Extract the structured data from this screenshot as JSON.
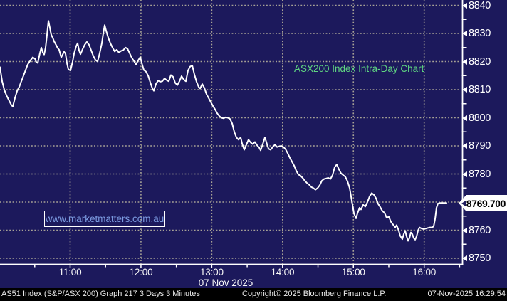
{
  "annotation": {
    "text": "ASX200 Index Intra-Day Chart",
    "color": "#5fd581"
  },
  "watermark": {
    "text": "www.marketmatters.com.au",
    "color": "#7d9ce2"
  },
  "price_tag": {
    "value": "8769.700"
  },
  "y_axis": {
    "labels": [
      "8840",
      "8830",
      "8820",
      "8810",
      "8800",
      "8790",
      "8780",
      "8760",
      "8750"
    ]
  },
  "x_axis": {
    "ticks": [
      "11:00",
      "12:00",
      "13:00",
      "14:00",
      "15:00",
      "16:00"
    ],
    "date_label": "07 Nov 2025"
  },
  "status_bar": {
    "left": "AS51 Index (S&P/ASX 200) Graph 217 3 Days 3 Minutes",
    "center": "Copyright© 2025 Bloomberg Finance L.P.",
    "right": "07-Nov-2025 16:29:54"
  },
  "colors": {
    "background": "#1c195c",
    "gridline": "#a8a396",
    "line": "#ffffff",
    "annotation_green": "#5fd581",
    "watermark_blue": "#7d9ce2",
    "axis_white": "#ffffff",
    "statusbar_bg": "#000000"
  },
  "chart_data": {
    "type": "line",
    "title": "ASX200 Index Intra-Day Chart",
    "series_name": "AS51 Index (S&P/ASX 200)",
    "interval": "3 Minutes",
    "session_date": "07 Nov 2025",
    "last_price": 8769.7,
    "day_high": 8834.5,
    "day_low": 8756.0,
    "ylim": [
      8750,
      8840
    ],
    "y_ticks": [
      8750,
      8760,
      8770,
      8780,
      8790,
      8800,
      8810,
      8820,
      8830,
      8840
    ],
    "y_minor_ticks": [
      8755,
      8765,
      8775,
      8785,
      8795,
      8805,
      8815,
      8825,
      8835
    ],
    "x_tick_labels": [
      "11:00",
      "12:00",
      "13:00",
      "14:00",
      "15:00",
      "16:00"
    ],
    "grid": "dotted",
    "legend_position": "none",
    "points": [
      [
        0,
        8818
      ],
      [
        3,
        8813
      ],
      [
        6,
        8810
      ],
      [
        9,
        8808
      ],
      [
        13,
        8806
      ],
      [
        16,
        8804.5
      ],
      [
        18,
        8804
      ],
      [
        21,
        8807
      ],
      [
        24,
        8809.5
      ],
      [
        27,
        8811
      ],
      [
        30,
        8813
      ],
      [
        33,
        8815
      ],
      [
        36,
        8817
      ],
      [
        39,
        8819
      ],
      [
        43,
        8820.5
      ],
      [
        46,
        8821.5
      ],
      [
        49,
        8821
      ],
      [
        51,
        8819.8
      ],
      [
        53,
        8819.5
      ],
      [
        56,
        8823
      ],
      [
        58,
        8825
      ],
      [
        60,
        8823.2
      ],
      [
        62,
        8822.5
      ],
      [
        64,
        8825
      ],
      [
        66,
        8829.5
      ],
      [
        68,
        8834.5
      ],
      [
        70,
        8832
      ],
      [
        72,
        8829.5
      ],
      [
        74,
        8828.5
      ],
      [
        76,
        8827.2
      ],
      [
        79,
        8825.8
      ],
      [
        81,
        8824.8
      ],
      [
        83,
        8824.2
      ],
      [
        86,
        8821.5
      ],
      [
        88,
        8822.5
      ],
      [
        90,
        8823.5
      ],
      [
        92,
        8822.8
      ],
      [
        94,
        8819.5
      ],
      [
        96,
        8817.2
      ],
      [
        99,
        8816.8
      ],
      [
        102,
        8820
      ],
      [
        104,
        8822.8
      ],
      [
        107,
        8825.5
      ],
      [
        109,
        8826.5
      ],
      [
        111,
        8824
      ],
      [
        113,
        8822.6
      ],
      [
        116,
        8824.4
      ],
      [
        119,
        8826
      ],
      [
        122,
        8827
      ],
      [
        125,
        8826
      ],
      [
        128,
        8824
      ],
      [
        131,
        8822
      ],
      [
        134,
        8820.6
      ],
      [
        137,
        8820
      ],
      [
        140,
        8823
      ],
      [
        143,
        8826.5
      ],
      [
        145,
        8830
      ],
      [
        147,
        8833
      ],
      [
        149,
        8831
      ],
      [
        152,
        8828.5
      ],
      [
        155,
        8826.5
      ],
      [
        158,
        8825
      ],
      [
        161,
        8823.6
      ],
      [
        164,
        8824.2
      ],
      [
        167,
        8823.2
      ],
      [
        170,
        8823.8
      ],
      [
        173,
        8824
      ],
      [
        176,
        8825
      ],
      [
        179,
        8824.6
      ],
      [
        182,
        8823
      ],
      [
        185,
        8821.4
      ],
      [
        188,
        8820.2
      ],
      [
        191,
        8819
      ],
      [
        194,
        8820.4
      ],
      [
        197,
        8821.6
      ],
      [
        199,
        8819.5
      ],
      [
        202,
        8817
      ],
      [
        205,
        8816.4
      ],
      [
        208,
        8815
      ],
      [
        211,
        8812.6
      ],
      [
        214,
        8810.4
      ],
      [
        216,
        8809.6
      ],
      [
        219,
        8812
      ],
      [
        222,
        8813.2
      ],
      [
        225,
        8812.8
      ],
      [
        228,
        8813
      ],
      [
        231,
        8814
      ],
      [
        234,
        8813.4
      ],
      [
        237,
        8813
      ],
      [
        240,
        8815.2
      ],
      [
        243,
        8814.6
      ],
      [
        246,
        8812.4
      ],
      [
        249,
        8811.6
      ],
      [
        252,
        8813
      ],
      [
        255,
        8814.8
      ],
      [
        258,
        8813.6
      ],
      [
        261,
        8813
      ],
      [
        264,
        8816.8
      ],
      [
        267,
        8818.2
      ],
      [
        270,
        8818.6
      ],
      [
        273,
        8815.4
      ],
      [
        276,
        8812.8
      ],
      [
        279,
        8811
      ],
      [
        281,
        8810.4
      ],
      [
        284,
        8812
      ],
      [
        287,
        8810.6
      ],
      [
        290,
        8808.4
      ],
      [
        293,
        8807
      ],
      [
        296,
        8805.6
      ],
      [
        299,
        8804.2
      ],
      [
        302,
        8803
      ],
      [
        305,
        8801.6
      ],
      [
        308,
        8800.6
      ],
      [
        311,
        8800
      ],
      [
        314,
        8799.8
      ],
      [
        317,
        8800.2
      ],
      [
        320,
        8800
      ],
      [
        323,
        8799.6
      ],
      [
        326,
        8798
      ],
      [
        329,
        8795
      ],
      [
        332,
        8793
      ],
      [
        335,
        8792.2
      ],
      [
        338,
        8793
      ],
      [
        340,
        8790.8
      ],
      [
        343,
        8788.6
      ],
      [
        346,
        8790.4
      ],
      [
        349,
        8792.2
      ],
      [
        352,
        8791.2
      ],
      [
        355,
        8790.6
      ],
      [
        358,
        8791.4
      ],
      [
        361,
        8790.2
      ],
      [
        364,
        8789.4
      ],
      [
        366,
        8788.4
      ],
      [
        369,
        8790.6
      ],
      [
        372,
        8793
      ],
      [
        374,
        8791.4
      ],
      [
        377,
        8789
      ],
      [
        380,
        8788.6
      ],
      [
        383,
        8789.6
      ],
      [
        386,
        8790.4
      ],
      [
        389,
        8789.6
      ],
      [
        392,
        8789.8
      ],
      [
        395,
        8790
      ],
      [
        398,
        8789.6
      ],
      [
        401,
        8788.8
      ],
      [
        404,
        8787.4
      ],
      [
        407,
        8785.8
      ],
      [
        410,
        8784.4
      ],
      [
        413,
        8783
      ],
      [
        416,
        8781.2
      ],
      [
        419,
        8779.8
      ],
      [
        422,
        8779.4
      ],
      [
        425,
        8778.6
      ],
      [
        428,
        8777.6
      ],
      [
        431,
        8776.8
      ],
      [
        434,
        8776.2
      ],
      [
        437,
        8775.4
      ],
      [
        440,
        8775
      ],
      [
        443,
        8774.4
      ],
      [
        446,
        8775
      ],
      [
        449,
        8776
      ],
      [
        452,
        8777.6
      ],
      [
        455,
        8778.2
      ],
      [
        458,
        8778.4
      ],
      [
        461,
        8778.6
      ],
      [
        464,
        8778.2
      ],
      [
        467,
        8779.6
      ],
      [
        470,
        8782.4
      ],
      [
        473,
        8783.4
      ],
      [
        476,
        8781.6
      ],
      [
        479,
        8780.2
      ],
      [
        482,
        8779.6
      ],
      [
        485,
        8779
      ],
      [
        488,
        8777.4
      ],
      [
        491,
        8775
      ],
      [
        494,
        8770.5
      ],
      [
        497,
        8766
      ],
      [
        500,
        8764.2
      ],
      [
        502,
        8766
      ],
      [
        505,
        8768
      ],
      [
        507,
        8767.4
      ],
      [
        510,
        8769
      ],
      [
        513,
        8768.4
      ],
      [
        516,
        8770
      ],
      [
        519,
        8772
      ],
      [
        522,
        8773.2
      ],
      [
        525,
        8772.6
      ],
      [
        528,
        8771.4
      ],
      [
        531,
        8769.4
      ],
      [
        534,
        8768.2
      ],
      [
        537,
        8766.8
      ],
      [
        540,
        8766.2
      ],
      [
        543,
        8764.4
      ],
      [
        546,
        8764.8
      ],
      [
        549,
        8763
      ],
      [
        552,
        8762
      ],
      [
        555,
        8761
      ],
      [
        557,
        8761.8
      ],
      [
        560,
        8759.8
      ],
      [
        562,
        8758
      ],
      [
        565,
        8756.8
      ],
      [
        567,
        8758.6
      ],
      [
        569,
        8759.8
      ],
      [
        571,
        8757.8
      ],
      [
        573,
        8756.2
      ],
      [
        575,
        8757.2
      ],
      [
        577,
        8759.2
      ],
      [
        579,
        8758.6
      ],
      [
        581,
        8757.2
      ],
      [
        583,
        8756.6
      ],
      [
        585,
        8757.8
      ],
      [
        587,
        8759.8
      ],
      [
        589,
        8761
      ],
      [
        592,
        8760.6
      ],
      [
        595,
        8760.4
      ],
      [
        598,
        8760.6
      ],
      [
        601,
        8760.8
      ],
      [
        604,
        8761
      ],
      [
        607,
        8761
      ],
      [
        609,
        8761.4
      ],
      [
        611,
        8764
      ],
      [
        613,
        8768
      ],
      [
        615,
        8769.5
      ],
      [
        618,
        8769.7
      ],
      [
        627,
        8769.7
      ]
    ]
  }
}
